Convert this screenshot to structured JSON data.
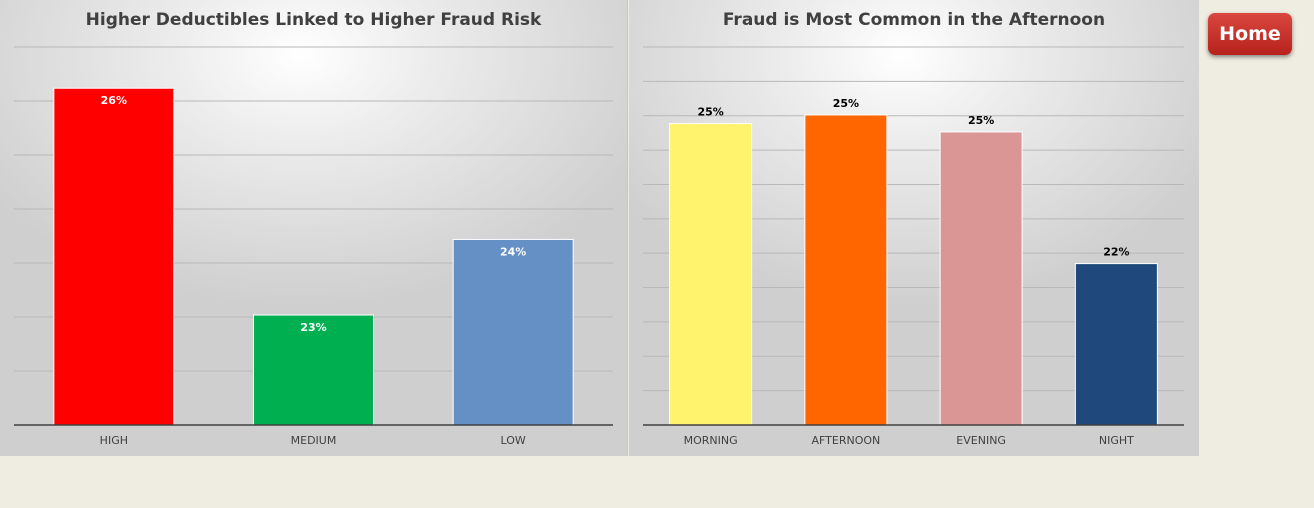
{
  "home_button": {
    "label": "Home"
  },
  "chart_data": [
    {
      "type": "bar",
      "title": "Higher Deductibles Linked to Higher Fraud Risk",
      "categories": [
        "HIGH",
        "MEDIUM",
        "LOW"
      ],
      "values": [
        25.9,
        22.6,
        23.7
      ],
      "labels": [
        "26%",
        "23%",
        "24%"
      ],
      "colors": [
        "#ff0000",
        "#00b050",
        "#6490c6"
      ],
      "ylim": [
        21,
        26.5
      ],
      "gridlines": true,
      "label_position": "inside-top",
      "label_color": "#ffffff"
    },
    {
      "type": "bar",
      "title": "Fraud is Most Common in the Afternoon",
      "categories": [
        "MORNING",
        "AFTERNOON",
        "EVENING",
        "NIGHT"
      ],
      "values": [
        25.2,
        25.4,
        25.0,
        21.9
      ],
      "labels": [
        "25%",
        "25%",
        "25%",
        "22%"
      ],
      "colors": [
        "#fff36e",
        "#ff6600",
        "#da9694",
        "#1f497d"
      ],
      "ylim": [
        18.1,
        27.0
      ],
      "gridlines": true,
      "label_position": "above",
      "label_color": "#000000"
    }
  ]
}
